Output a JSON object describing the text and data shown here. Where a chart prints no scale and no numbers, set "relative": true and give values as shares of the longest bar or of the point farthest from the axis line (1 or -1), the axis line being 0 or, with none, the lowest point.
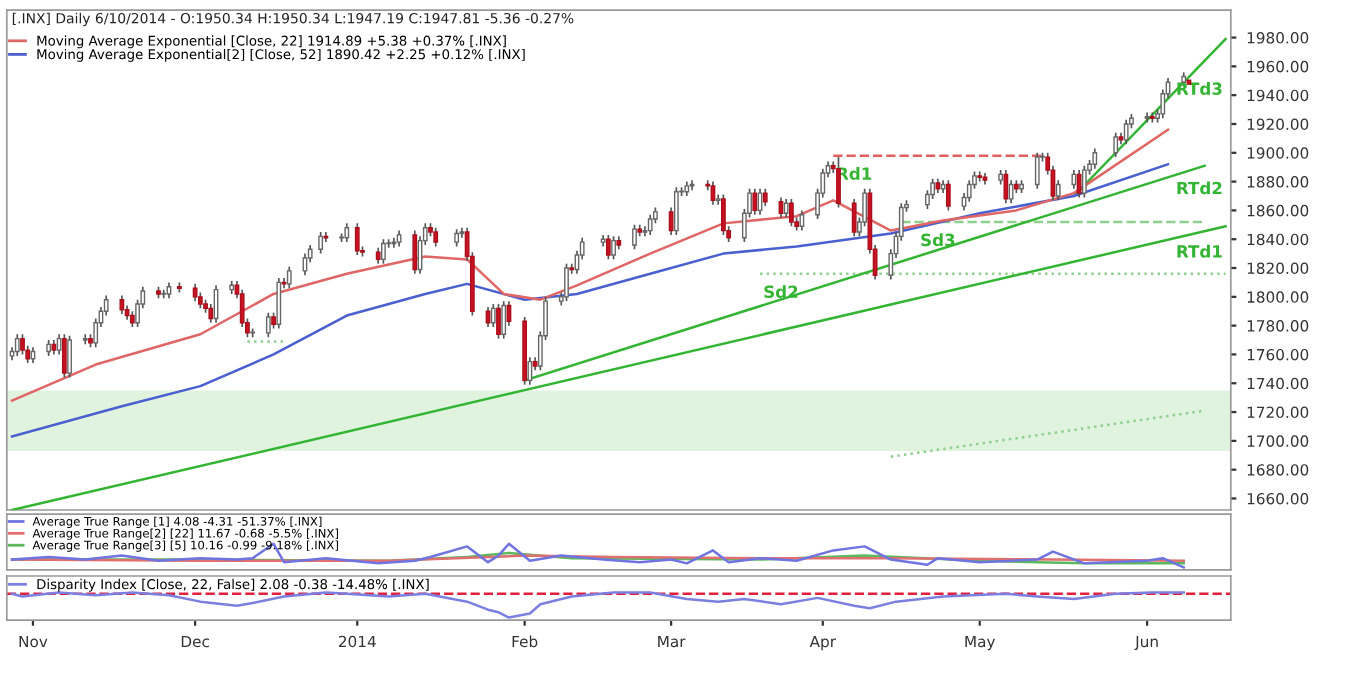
{
  "chart_data": [
    {
      "type": "candlestick",
      "title": "[.INX] Daily 6/10/2014 - O:1950.34 H:1950.34 L:1947.19 C:1947.81 -5.36 -0.27%",
      "x": [
        "2013-10-28",
        "2013-10-29",
        "2013-10-30",
        "2013-10-31",
        "2013-11-01",
        "2013-11-04",
        "2013-11-05",
        "2013-11-06",
        "2013-11-07",
        "2013-11-08",
        "2013-11-11",
        "2013-11-12",
        "2013-11-13",
        "2013-11-14",
        "2013-11-15",
        "2013-11-18",
        "2013-11-19",
        "2013-11-20",
        "2013-11-21",
        "2013-11-22",
        "2013-11-25",
        "2013-11-26",
        "2013-11-27",
        "2013-11-29",
        "2013-12-02",
        "2013-12-03",
        "2013-12-04",
        "2013-12-05",
        "2013-12-06",
        "2013-12-09",
        "2013-12-10",
        "2013-12-11",
        "2013-12-12",
        "2013-12-13",
        "2013-12-16",
        "2013-12-17",
        "2013-12-18",
        "2013-12-19",
        "2013-12-20",
        "2013-12-23",
        "2013-12-24",
        "2013-12-26",
        "2013-12-27",
        "2013-12-30",
        "2013-12-31",
        "2014-01-02",
        "2014-01-03",
        "2014-01-06",
        "2014-01-07",
        "2014-01-08",
        "2014-01-09",
        "2014-01-10",
        "2014-01-13",
        "2014-01-14",
        "2014-01-15",
        "2014-01-16",
        "2014-01-17",
        "2014-01-21",
        "2014-01-22",
        "2014-01-23",
        "2014-01-24",
        "2014-01-27",
        "2014-01-28",
        "2014-01-29",
        "2014-01-30",
        "2014-01-31",
        "2014-02-03",
        "2014-02-04",
        "2014-02-05",
        "2014-02-06",
        "2014-02-07",
        "2014-02-10",
        "2014-02-11",
        "2014-02-12",
        "2014-02-13",
        "2014-02-14",
        "2014-02-18",
        "2014-02-19",
        "2014-02-20",
        "2014-02-21",
        "2014-02-24",
        "2014-02-25",
        "2014-02-26",
        "2014-02-27",
        "2014-02-28",
        "2014-03-03",
        "2014-03-04",
        "2014-03-05",
        "2014-03-06",
        "2014-03-07",
        "2014-03-10",
        "2014-03-11",
        "2014-03-12",
        "2014-03-13",
        "2014-03-14",
        "2014-03-17",
        "2014-03-18",
        "2014-03-19",
        "2014-03-20",
        "2014-03-21",
        "2014-03-24",
        "2014-03-25",
        "2014-03-26",
        "2014-03-27",
        "2014-03-28",
        "2014-03-31",
        "2014-04-01",
        "2014-04-02",
        "2014-04-03",
        "2014-04-04",
        "2014-04-07",
        "2014-04-08",
        "2014-04-09",
        "2014-04-10",
        "2014-04-11",
        "2014-04-14",
        "2014-04-15",
        "2014-04-16",
        "2014-04-17",
        "2014-04-21",
        "2014-04-22",
        "2014-04-23",
        "2014-04-24",
        "2014-04-25",
        "2014-04-28",
        "2014-04-29",
        "2014-04-30",
        "2014-05-01",
        "2014-05-02",
        "2014-05-05",
        "2014-05-06",
        "2014-05-07",
        "2014-05-08",
        "2014-05-09",
        "2014-05-12",
        "2014-05-13",
        "2014-05-14",
        "2014-05-15",
        "2014-05-16",
        "2014-05-19",
        "2014-05-20",
        "2014-05-21",
        "2014-05-22",
        "2014-05-23",
        "2014-05-27",
        "2014-05-28",
        "2014-05-29",
        "2014-05-30",
        "2014-06-02",
        "2014-06-03",
        "2014-06-04",
        "2014-06-05",
        "2014-06-06",
        "2014-06-09",
        "2014-06-10"
      ],
      "ohlc": [
        [
          1759,
          1765,
          1756,
          1762
        ],
        [
          1762,
          1774,
          1759,
          1771
        ],
        [
          1771,
          1774,
          1760,
          1763
        ],
        [
          1763,
          1766,
          1754,
          1757
        ],
        [
          1757,
          1765,
          1754,
          1762
        ],
        [
          1762,
          1770,
          1759,
          1767
        ],
        [
          1767,
          1770,
          1760,
          1763
        ],
        [
          1763,
          1774,
          1760,
          1771
        ],
        [
          1771,
          1774,
          1744,
          1747
        ],
        [
          1747,
          1773,
          1744,
          1770
        ],
        [
          1770,
          1774,
          1767,
          1771
        ],
        [
          1771,
          1774,
          1765,
          1768
        ],
        [
          1768,
          1785,
          1765,
          1782
        ],
        [
          1782,
          1793,
          1779,
          1790
        ],
        [
          1790,
          1801,
          1787,
          1798
        ],
        [
          1798,
          1801,
          1788,
          1791
        ],
        [
          1791,
          1794,
          1784,
          1787
        ],
        [
          1787,
          1790,
          1779,
          1782
        ],
        [
          1782,
          1798,
          1779,
          1795
        ],
        [
          1795,
          1807,
          1792,
          1804
        ],
        [
          1804,
          1807,
          1799,
          1802
        ],
        [
          1802,
          1805,
          1799,
          1802
        ],
        [
          1802,
          1810,
          1799,
          1807
        ],
        [
          1807,
          1810,
          1803,
          1806
        ],
        [
          1806,
          1809,
          1797,
          1800
        ],
        [
          1800,
          1803,
          1792,
          1795
        ],
        [
          1795,
          1798,
          1789,
          1792
        ],
        [
          1792,
          1795,
          1782,
          1785
        ],
        [
          1785,
          1808,
          1782,
          1805
        ],
        [
          1805,
          1811,
          1802,
          1808
        ],
        [
          1808,
          1811,
          1799,
          1802
        ],
        [
          1802,
          1805,
          1779,
          1782
        ],
        [
          1782,
          1785,
          1772,
          1775
        ],
        [
          1775,
          1778,
          1772,
          1775
        ],
        [
          1775,
          1789,
          1772,
          1786
        ],
        [
          1786,
          1789,
          1778,
          1781
        ],
        [
          1781,
          1813,
          1778,
          1810
        ],
        [
          1810,
          1813,
          1806,
          1809
        ],
        [
          1809,
          1821,
          1806,
          1818
        ],
        [
          1818,
          1830,
          1815,
          1827
        ],
        [
          1827,
          1836,
          1824,
          1833
        ],
        [
          1833,
          1845,
          1830,
          1842
        ],
        [
          1842,
          1845,
          1838,
          1841
        ],
        [
          1841,
          1844,
          1838,
          1841
        ],
        [
          1841,
          1851,
          1838,
          1848
        ],
        [
          1848,
          1851,
          1829,
          1832
        ],
        [
          1832,
          1835,
          1828,
          1831
        ],
        [
          1831,
          1834,
          1823,
          1826
        ],
        [
          1826,
          1840,
          1823,
          1837
        ],
        [
          1837,
          1840,
          1834,
          1837
        ],
        [
          1837,
          1841,
          1834,
          1838
        ],
        [
          1838,
          1846,
          1835,
          1843
        ],
        [
          1843,
          1846,
          1816,
          1819
        ],
        [
          1819,
          1842,
          1816,
          1839
        ],
        [
          1839,
          1851,
          1836,
          1848
        ],
        [
          1848,
          1851,
          1842,
          1845
        ],
        [
          1845,
          1848,
          1835,
          1838
        ],
        [
          1838,
          1847,
          1835,
          1844
        ],
        [
          1844,
          1848,
          1841,
          1845
        ],
        [
          1845,
          1848,
          1825,
          1828
        ],
        [
          1828,
          1831,
          1787,
          1790
        ],
        [
          1790,
          1793,
          1779,
          1782
        ],
        [
          1782,
          1795,
          1779,
          1792
        ],
        [
          1792,
          1795,
          1771,
          1774
        ],
        [
          1774,
          1797,
          1771,
          1794
        ],
        [
          1794,
          1797,
          1780,
          1783
        ],
        [
          1783,
          1786,
          1739,
          1742
        ],
        [
          1742,
          1758,
          1739,
          1755
        ],
        [
          1755,
          1758,
          1749,
          1752
        ],
        [
          1752,
          1776,
          1749,
          1773
        ],
        [
          1773,
          1800,
          1770,
          1797
        ],
        [
          1797,
          1803,
          1794,
          1800
        ],
        [
          1800,
          1823,
          1797,
          1820
        ],
        [
          1820,
          1823,
          1816,
          1819
        ],
        [
          1819,
          1832,
          1816,
          1829
        ],
        [
          1829,
          1841,
          1826,
          1838
        ],
        [
          1838,
          1843,
          1835,
          1840
        ],
        [
          1840,
          1843,
          1826,
          1829
        ],
        [
          1829,
          1842,
          1826,
          1839
        ],
        [
          1839,
          1842,
          1833,
          1836
        ],
        [
          1836,
          1850,
          1833,
          1847
        ],
        [
          1847,
          1850,
          1842,
          1845
        ],
        [
          1845,
          1849,
          1842,
          1846
        ],
        [
          1846,
          1857,
          1843,
          1854
        ],
        [
          1854,
          1862,
          1851,
          1859
        ],
        [
          1859,
          1862,
          1843,
          1846
        ],
        [
          1846,
          1876,
          1843,
          1873
        ],
        [
          1873,
          1876,
          1870,
          1873
        ],
        [
          1873,
          1880,
          1870,
          1877
        ],
        [
          1877,
          1881,
          1874,
          1878
        ],
        [
          1878,
          1881,
          1874,
          1877
        ],
        [
          1877,
          1880,
          1864,
          1867
        ],
        [
          1867,
          1871,
          1864,
          1868
        ],
        [
          1868,
          1871,
          1843,
          1846
        ],
        [
          1846,
          1849,
          1838,
          1841
        ],
        [
          1841,
          1861,
          1838,
          1858
        ],
        [
          1858,
          1875,
          1855,
          1872
        ],
        [
          1872,
          1875,
          1857,
          1860
        ],
        [
          1860,
          1875,
          1857,
          1872
        ],
        [
          1872,
          1875,
          1863,
          1866
        ],
        [
          1866,
          1869,
          1855,
          1858
        ],
        [
          1858,
          1868,
          1855,
          1865
        ],
        [
          1865,
          1868,
          1849,
          1852
        ],
        [
          1852,
          1855,
          1846,
          1849
        ],
        [
          1849,
          1860,
          1846,
          1857
        ],
        [
          1857,
          1875,
          1854,
          1872
        ],
        [
          1872,
          1889,
          1869,
          1886
        ],
        [
          1886,
          1894,
          1883,
          1891
        ],
        [
          1891,
          1894,
          1886,
          1889
        ],
        [
          1889,
          1897,
          1862,
          1865
        ],
        [
          1865,
          1868,
          1842,
          1845
        ],
        [
          1845,
          1855,
          1842,
          1852
        ],
        [
          1852,
          1875,
          1849,
          1872
        ],
        [
          1872,
          1875,
          1830,
          1833
        ],
        [
          1833,
          1836,
          1812,
          1815
        ],
        [
          1815,
          1833,
          1812,
          1830
        ],
        [
          1830,
          1845,
          1827,
          1842
        ],
        [
          1842,
          1865,
          1839,
          1862
        ],
        [
          1862,
          1867,
          1859,
          1864
        ],
        [
          1864,
          1874,
          1861,
          1871
        ],
        [
          1871,
          1882,
          1868,
          1879
        ],
        [
          1879,
          1882,
          1872,
          1875
        ],
        [
          1875,
          1881,
          1872,
          1878
        ],
        [
          1878,
          1881,
          1860,
          1863
        ],
        [
          1863,
          1872,
          1860,
          1869
        ],
        [
          1869,
          1881,
          1866,
          1878
        ],
        [
          1878,
          1887,
          1875,
          1884
        ],
        [
          1884,
          1887,
          1880,
          1883
        ],
        [
          1883,
          1886,
          1878,
          1881
        ],
        [
          1881,
          1888,
          1878,
          1885
        ],
        [
          1885,
          1888,
          1865,
          1868
        ],
        [
          1868,
          1881,
          1865,
          1878
        ],
        [
          1878,
          1881,
          1872,
          1875
        ],
        [
          1875,
          1881,
          1872,
          1878
        ],
        [
          1878,
          1900,
          1875,
          1897
        ],
        [
          1897,
          1900,
          1894,
          1897
        ],
        [
          1897,
          1900,
          1885,
          1888
        ],
        [
          1888,
          1891,
          1867,
          1870
        ],
        [
          1870,
          1881,
          1867,
          1878
        ],
        [
          1878,
          1888,
          1875,
          1885
        ],
        [
          1885,
          1888,
          1869,
          1872
        ],
        [
          1872,
          1891,
          1869,
          1888
        ],
        [
          1888,
          1895,
          1885,
          1892
        ],
        [
          1892,
          1903,
          1889,
          1900
        ],
        [
          1900,
          1914,
          1897,
          1911
        ],
        [
          1911,
          1914,
          1906,
          1909
        ],
        [
          1909,
          1923,
          1906,
          1920
        ],
        [
          1920,
          1927,
          1917,
          1924
        ],
        [
          1924,
          1928,
          1921,
          1925
        ],
        [
          1925,
          1928,
          1921,
          1924
        ],
        [
          1924,
          1930,
          1921,
          1927
        ],
        [
          1927,
          1944,
          1924,
          1941
        ],
        [
          1941,
          1952,
          1938,
          1949
        ],
        [
          1949,
          1956,
          1946,
          1953
        ],
        [
          1950.34,
          1950.34,
          1947.19,
          1947.81
        ]
      ],
      "series": [
        {
          "type": "line",
          "name": "Moving Average Exponential [Close, 22] 1914.89 +5.38 +0.37% [.INX]",
          "color": "#e06666",
          "x": [
            "2013-10-28",
            "2013-11-13",
            "2013-12-03",
            "2013-12-17",
            "2013-12-31",
            "2014-01-15",
            "2014-01-23",
            "2014-01-30",
            "2014-02-06",
            "2014-02-13",
            "2014-02-27",
            "2014-03-13",
            "2014-03-27",
            "2014-04-03",
            "2014-04-14",
            "2014-04-24",
            "2014-05-08",
            "2014-05-19",
            "2014-06-06"
          ],
          "values": [
            1728,
            1753,
            1774,
            1802,
            1816,
            1828,
            1826,
            1802,
            1798,
            1808,
            1830,
            1851,
            1856,
            1867,
            1846,
            1853,
            1860,
            1872,
            1916
          ]
        },
        {
          "type": "line",
          "name": "Moving Average Exponential[2] [Close, 52] 1890.42 +2.25 +0.12% [.INX]",
          "color": "#4a5fd0",
          "x": [
            "2013-10-28",
            "2013-11-18",
            "2013-12-03",
            "2013-12-17",
            "2013-12-31",
            "2014-01-15",
            "2014-01-23",
            "2014-02-03",
            "2014-02-13",
            "2014-02-27",
            "2014-03-13",
            "2014-03-27",
            "2014-04-14",
            "2014-05-01",
            "2014-05-19",
            "2014-06-06"
          ],
          "values": [
            1703,
            1724,
            1738,
            1760,
            1787,
            1802,
            1809,
            1798,
            1802,
            1816,
            1830,
            1835,
            1844,
            1858,
            1870,
            1892
          ]
        },
        {
          "type": "line",
          "color": "#33b533",
          "x": [
            "2013-10-28",
            "2014-06-17"
          ],
          "values": [
            1652,
            1849
          ]
        },
        {
          "type": "line",
          "color": "#33b533",
          "x": [
            "2014-02-03",
            "2014-06-13"
          ],
          "values": [
            1742,
            1891
          ]
        },
        {
          "type": "line",
          "color": "#33b533",
          "x": [
            "2014-05-19",
            "2014-06-17"
          ],
          "values": [
            1870,
            1979
          ]
        },
        {
          "type": "line",
          "color": "#e06060",
          "line_style": "dashed",
          "x": [
            "2014-04-03",
            "2014-05-13"
          ],
          "values": [
            1898,
            1898
          ]
        },
        {
          "type": "line",
          "color": "#8fd08f",
          "line_style": "dotted",
          "x": [
            "2014-03-20",
            "2014-06-17"
          ],
          "values": [
            1816,
            1816
          ]
        },
        {
          "type": "line",
          "color": "#8fd08f",
          "line_style": "dashed",
          "x": [
            "2014-04-16",
            "2014-06-13"
          ],
          "values": [
            1852,
            1852
          ]
        },
        {
          "type": "line",
          "color": "#8fd08f",
          "line_style": "dotted",
          "x": [
            "2013-12-12",
            "2013-12-19"
          ],
          "values": [
            1769,
            1769
          ]
        },
        {
          "type": "line",
          "color": "#8fd08f",
          "line_style": "dotted",
          "x": [
            "2014-04-14",
            "2014-06-13"
          ],
          "values": [
            1689,
            1721
          ]
        }
      ],
      "annotations": [
        {
          "text": "RTd3",
          "x": "2014-06-12",
          "y": 1957
        },
        {
          "text": "RTd2",
          "x": "2014-06-12",
          "y": 1888
        },
        {
          "text": "RTd1",
          "x": "2014-06-12",
          "y": 1844
        },
        {
          "text": "Rd1",
          "x": "2014-04-07",
          "y": 1898
        },
        {
          "text": "Sd2",
          "x": "2014-03-24",
          "y": 1816
        },
        {
          "text": "Sd3",
          "x": "2014-04-23",
          "y": 1852
        }
      ],
      "bands": [
        {
          "axis": "y",
          "from": 1693,
          "to": 1735,
          "color": "#dff3df"
        }
      ],
      "xlim": [
        "2013-10-27",
        "2014-06-18"
      ],
      "ylim": [
        1652,
        1999
      ],
      "yticks": [
        {
          "value": 1660,
          "label": "1660.00"
        },
        {
          "value": 1680,
          "label": "1680.00"
        },
        {
          "value": 1700,
          "label": "1700.00"
        },
        {
          "value": 1720,
          "label": "1720.00"
        },
        {
          "value": 1740,
          "label": "1740.00"
        },
        {
          "value": 1760,
          "label": "1760.00"
        },
        {
          "value": 1780,
          "label": "1780.00"
        },
        {
          "value": 1800,
          "label": "1800.00"
        },
        {
          "value": 1820,
          "label": "1820.00"
        },
        {
          "value": 1840,
          "label": "1840.00"
        },
        {
          "value": 1860,
          "label": "1860.00"
        },
        {
          "value": 1880,
          "label": "1880.00"
        },
        {
          "value": 1900,
          "label": "1900.00"
        },
        {
          "value": 1920,
          "label": "1920.00"
        },
        {
          "value": 1940,
          "label": "1940.00"
        },
        {
          "value": 1960,
          "label": "1960.00"
        },
        {
          "value": 1980,
          "label": "1980.00"
        }
      ],
      "tick_labels": "y",
      "legend": "top left"
    },
    {
      "type": "line",
      "relative": true,
      "xlim": [
        "2013-10-27",
        "2014-06-18"
      ],
      "tick_labels": false,
      "legend": "top left",
      "series": [
        {
          "name": "Average True Range [1] 4.08 -4.31 -51.37% [.INX]",
          "color": "#6f74e0",
          "x": [
            "2013-10-28",
            "2013-11-04",
            "2013-11-11",
            "2013-11-18",
            "2013-11-25",
            "2013-12-03",
            "2013-12-10",
            "2013-12-13",
            "2013-12-17",
            "2013-12-19",
            "2013-12-27",
            "2014-01-06",
            "2014-01-13",
            "2014-01-16",
            "2014-01-23",
            "2014-01-27",
            "2014-01-29",
            "2014-01-31",
            "2014-02-04",
            "2014-02-10",
            "2014-02-18",
            "2014-02-25",
            "2014-03-03",
            "2014-03-06",
            "2014-03-11",
            "2014-03-14",
            "2014-03-20",
            "2014-03-27",
            "2014-04-03",
            "2014-04-09",
            "2014-04-14",
            "2014-04-21",
            "2014-04-23",
            "2014-05-01",
            "2014-05-12",
            "2014-05-15",
            "2014-05-21",
            "2014-06-02",
            "2014-06-05",
            "2014-06-09"
          ],
          "values": [
            0.33,
            0.44,
            0.33,
            0.5,
            0.28,
            0.39,
            0.33,
            0.39,
            1,
            0.22,
            0.39,
            0.17,
            0.28,
            0.44,
            0.89,
            0.22,
            0.5,
            1,
            0.28,
            0.5,
            0.33,
            0.22,
            0.33,
            0.17,
            0.72,
            0.22,
            0.39,
            0.28,
            0.72,
            0.89,
            0.33,
            0.11,
            0.39,
            0.22,
            0.33,
            0.67,
            0.17,
            0.28,
            0.39,
            0
          ]
        },
        {
          "name": "Average True Range[2] [22] 11.67 -0.68 -5.5% [.INX]",
          "color": "#e07070",
          "x": [
            "2013-10-28",
            "2013-12-03",
            "2014-01-08",
            "2014-02-03",
            "2014-02-20",
            "2014-03-20",
            "2014-04-14",
            "2014-05-15",
            "2014-06-09"
          ],
          "values": [
            0.33,
            0.28,
            0.28,
            0.5,
            0.44,
            0.39,
            0.39,
            0.33,
            0.28
          ]
        },
        {
          "name": "Average True Range[3] [5] 10.16 -0.99 -9.18% [.INX]",
          "color": "#5cb85c",
          "x": [
            "2013-10-28",
            "2013-12-03",
            "2014-01-08",
            "2014-01-23",
            "2014-01-31",
            "2014-02-12",
            "2014-03-20",
            "2014-04-09",
            "2014-05-01",
            "2014-05-21",
            "2014-06-09"
          ],
          "values": [
            0.33,
            0.33,
            0.28,
            0.44,
            0.61,
            0.39,
            0.33,
            0.5,
            0.28,
            0.17,
            0.17
          ]
        }
      ]
    },
    {
      "type": "line",
      "relative": true,
      "xlim": [
        "2013-10-27",
        "2014-06-18"
      ],
      "tick_labels": "x",
      "legend": "top left",
      "xticks": [
        {
          "value": "2013-11-01",
          "label": "Nov"
        },
        {
          "value": "2013-12-02",
          "label": "Dec"
        },
        {
          "value": "2014-01-02",
          "label": "2014"
        },
        {
          "value": "2014-02-03",
          "label": "Feb"
        },
        {
          "value": "2014-03-03",
          "label": "Mar"
        },
        {
          "value": "2014-04-01",
          "label": "Apr"
        },
        {
          "value": "2014-05-01",
          "label": "May"
        },
        {
          "value": "2014-06-02",
          "label": "Jun"
        }
      ],
      "ref_lines": [
        {
          "axis": "y",
          "value": 0,
          "color": "#e0203c",
          "line_style": "dashed"
        }
      ],
      "series": [
        {
          "name": "Disparity Index [Close, 22, False] 2.08 -0.38 -14.48% [.INX]",
          "color": "#7b7fe0",
          "x": [
            "2013-10-28",
            "2013-10-30",
            "2013-11-06",
            "2013-11-13",
            "2013-11-20",
            "2013-11-27",
            "2013-12-03",
            "2013-12-10",
            "2013-12-13",
            "2013-12-19",
            "2013-12-27",
            "2013-12-31",
            "2014-01-08",
            "2014-01-15",
            "2014-01-23",
            "2014-01-27",
            "2014-01-29",
            "2014-01-31",
            "2014-02-04",
            "2014-02-06",
            "2014-02-12",
            "2014-02-20",
            "2014-02-27",
            "2014-03-06",
            "2014-03-12",
            "2014-03-17",
            "2014-03-24",
            "2014-03-31",
            "2014-04-07",
            "2014-04-10",
            "2014-04-15",
            "2014-04-24",
            "2014-05-06",
            "2014-05-12",
            "2014-05-19",
            "2014-05-27",
            "2014-06-03",
            "2014-06-09"
          ],
          "values": [
            0,
            -0.11,
            0.06,
            -0.06,
            0.06,
            -0.06,
            -0.33,
            -0.5,
            -0.39,
            -0.11,
            0.06,
            0,
            -0.11,
            0,
            -0.33,
            -0.67,
            -0.78,
            -1,
            -0.83,
            -0.44,
            -0.11,
            0.06,
            0.06,
            -0.22,
            -0.33,
            -0.22,
            -0.44,
            -0.17,
            -0.5,
            -0.61,
            -0.33,
            -0.11,
            0,
            -0.11,
            -0.22,
            0,
            0.06,
            0.06
          ]
        }
      ]
    }
  ]
}
